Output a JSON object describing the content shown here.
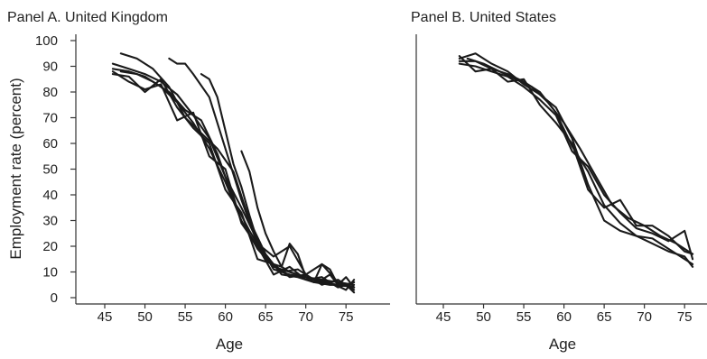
{
  "chart_data": [
    {
      "type": "line",
      "title": "Panel A. United Kingdom",
      "xlabel": "Age",
      "ylabel": "Employment rate (percent)",
      "xlim": [
        45,
        77
      ],
      "ylim": [
        0,
        100
      ],
      "xticks": [
        45,
        50,
        55,
        60,
        65,
        70,
        75
      ],
      "yticks": [
        0,
        10,
        20,
        30,
        40,
        50,
        60,
        70,
        80,
        90,
        100
      ],
      "grid": false,
      "series": [
        {
          "x": [
            46,
            48,
            50,
            52,
            54,
            56,
            58,
            60,
            62,
            64,
            66,
            68,
            70,
            72,
            74,
            76
          ],
          "y": [
            91,
            89,
            87,
            84,
            79,
            71,
            62,
            47,
            35,
            22,
            11,
            9,
            8,
            7,
            6,
            5
          ]
        },
        {
          "x": [
            46,
            48,
            50,
            52,
            54,
            56,
            58,
            60,
            62,
            64,
            66,
            68,
            70,
            72,
            74,
            76
          ],
          "y": [
            89,
            88,
            86,
            82,
            76,
            68,
            58,
            45,
            30,
            19,
            12,
            10,
            8,
            6,
            5,
            4
          ]
        },
        {
          "x": [
            46,
            48,
            50,
            52,
            54,
            56,
            58,
            60,
            62,
            64,
            66,
            68,
            70,
            72,
            74,
            76
          ],
          "y": [
            88,
            84,
            81,
            83,
            69,
            72,
            55,
            50,
            29,
            20,
            9,
            12,
            7,
            8,
            4,
            6
          ]
        },
        {
          "x": [
            46,
            48,
            50,
            52,
            54,
            56,
            58,
            60,
            62,
            64,
            66,
            68,
            70,
            72,
            74,
            76
          ],
          "y": [
            87,
            86,
            80,
            85,
            74,
            66,
            60,
            42,
            33,
            15,
            13,
            8,
            9,
            5,
            7,
            3
          ]
        },
        {
          "x": [
            47,
            49,
            51,
            53,
            55,
            57,
            59,
            61,
            63,
            65,
            67,
            69,
            71,
            73,
            75,
            76
          ],
          "y": [
            88,
            87,
            84,
            80,
            73,
            69,
            56,
            38,
            26,
            16,
            10,
            11,
            7,
            6,
            3,
            7
          ]
        },
        {
          "x": [
            47,
            49,
            51,
            53,
            55,
            57,
            59,
            61,
            63,
            65,
            67,
            69,
            71,
            73,
            75,
            76
          ],
          "y": [
            95,
            93,
            89,
            82,
            70,
            64,
            58,
            49,
            30,
            17,
            9,
            8,
            6,
            5,
            5,
            2
          ]
        },
        {
          "x": [
            53,
            54,
            55,
            56,
            58,
            60,
            62,
            64,
            66,
            68,
            70,
            72,
            74,
            76
          ],
          "y": [
            93,
            91,
            91,
            87,
            78,
            58,
            38,
            21,
            16,
            20,
            9,
            13,
            6,
            4
          ]
        },
        {
          "x": [
            57,
            58,
            59,
            60,
            61,
            62,
            63,
            64,
            65,
            66,
            67,
            68,
            69,
            70,
            71,
            72,
            73,
            74,
            75,
            76
          ],
          "y": [
            87,
            85,
            78,
            65,
            52,
            43,
            32,
            22,
            15,
            13,
            12,
            21,
            17,
            8,
            6,
            13,
            11,
            5,
            5,
            6
          ]
        },
        {
          "x": [
            62,
            63,
            64,
            65,
            66,
            67,
            68,
            69,
            70,
            71,
            72,
            73,
            74,
            75,
            76
          ],
          "y": [
            57,
            49,
            35,
            25,
            18,
            12,
            10,
            9,
            8,
            6,
            7,
            9,
            5,
            8,
            4
          ]
        }
      ]
    },
    {
      "type": "line",
      "title": "Panel B. United States",
      "xlabel": "Age",
      "ylabel": "",
      "xlim": [
        45,
        77
      ],
      "ylim": [
        0,
        100
      ],
      "xticks": [
        45,
        50,
        55,
        60,
        65,
        70,
        75
      ],
      "yticks": [],
      "grid": false,
      "series": [
        {
          "x": [
            48,
            50,
            52,
            54,
            56,
            58,
            60,
            62,
            64,
            66,
            68,
            70,
            72,
            74,
            76
          ],
          "y": [
            93,
            91,
            88,
            85,
            82,
            76,
            68,
            58,
            47,
            36,
            31,
            28,
            24,
            21,
            17
          ]
        },
        {
          "x": [
            47,
            49,
            51,
            53,
            55,
            57,
            59,
            61,
            63,
            65,
            67,
            69,
            71,
            73,
            75,
            76
          ],
          "y": [
            92,
            92,
            89,
            87,
            84,
            80,
            72,
            59,
            49,
            36,
            29,
            24,
            23,
            19,
            15,
            13
          ]
        },
        {
          "x": [
            47,
            49,
            51,
            53,
            55,
            57,
            59,
            61,
            63,
            65,
            67,
            69,
            71,
            73,
            75,
            76
          ],
          "y": [
            93,
            95,
            91,
            88,
            83,
            79,
            74,
            62,
            44,
            30,
            26,
            24,
            21,
            18,
            16,
            12
          ]
        },
        {
          "x": [
            47,
            49,
            51,
            53,
            55,
            57,
            59,
            61,
            63,
            65,
            67,
            69,
            71,
            73,
            75,
            76
          ],
          "y": [
            91,
            90,
            88,
            86,
            82,
            77,
            71,
            57,
            51,
            40,
            33,
            27,
            25,
            22,
            26,
            15
          ]
        },
        {
          "x": [
            47,
            49,
            51,
            53,
            55,
            57,
            59,
            61,
            63,
            65,
            67,
            69,
            71,
            73,
            75,
            76
          ],
          "y": [
            94,
            88,
            89,
            84,
            85,
            75,
            68,
            60,
            42,
            35,
            38,
            28,
            28,
            24,
            18,
            17
          ]
        }
      ]
    }
  ]
}
